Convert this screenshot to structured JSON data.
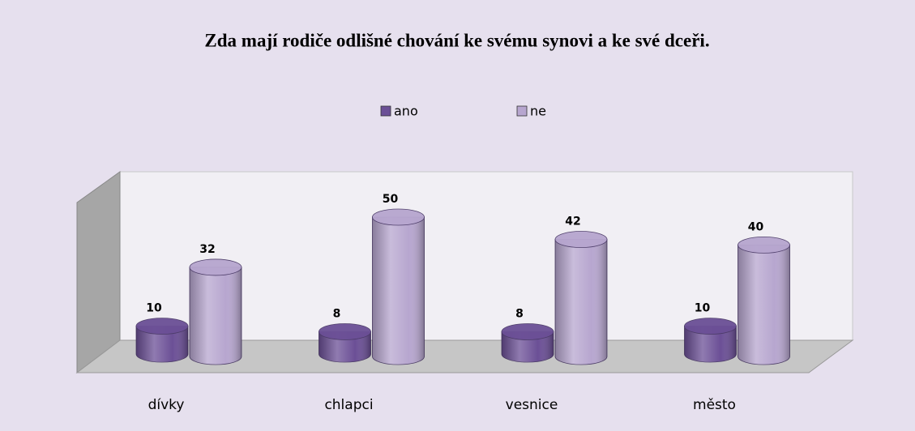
{
  "chart_data": {
    "type": "bar3d",
    "title": "Zda mají rodiče odlišné chování ke svému synovi a ke své dceři.",
    "categories": [
      "dívky",
      "chlapci",
      "vesnice",
      "město"
    ],
    "series": [
      {
        "name": "ano",
        "color": "#6b4f96",
        "values": [
          10,
          8,
          8,
          10
        ]
      },
      {
        "name": "ne",
        "color": "#b7a6cf",
        "values": [
          32,
          50,
          42,
          40
        ]
      }
    ],
    "legend": "top"
  }
}
